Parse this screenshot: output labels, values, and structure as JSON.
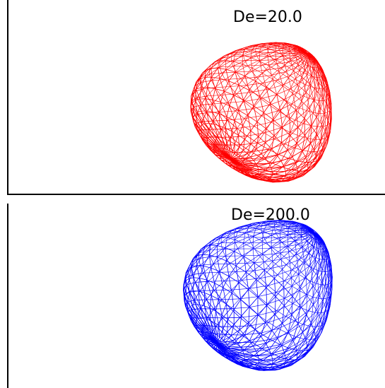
{
  "panels": [
    {
      "title": "De=20.0",
      "mesh_color": "#ff0000"
    },
    {
      "title": "De=200.0",
      "mesh_color": "#0000ff"
    }
  ]
}
